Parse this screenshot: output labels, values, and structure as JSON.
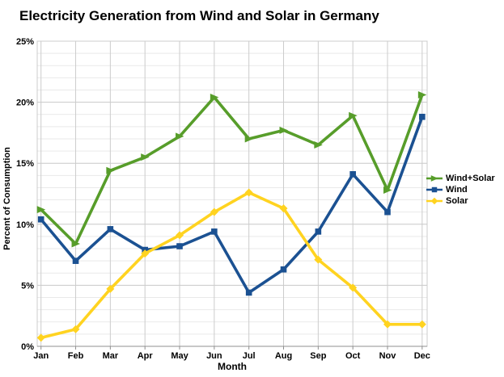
{
  "page": {
    "background": "#ffffff"
  },
  "chart_data": {
    "type": "line",
    "title": "Electricity Generation from Wind and Solar in Germany",
    "xlabel": "Month",
    "ylabel": "Percent of Consumption",
    "x_categories": [
      "Jan",
      "Feb",
      "Mar",
      "Apr",
      "May",
      "Jun",
      "Jul",
      "Aug",
      "Sep",
      "Oct",
      "Nov",
      "Dec"
    ],
    "series": [
      {
        "name": "Wind+Solar",
        "color": "#579d2a",
        "marker": "arrow",
        "values": [
          11.2,
          8.4,
          14.4,
          15.5,
          17.2,
          20.4,
          17.0,
          17.7,
          16.5,
          18.9,
          12.8,
          20.6
        ]
      },
      {
        "name": "Wind",
        "color": "#1b5192",
        "marker": "square",
        "values": [
          10.4,
          7.0,
          9.6,
          7.9,
          8.2,
          9.4,
          4.4,
          6.3,
          9.4,
          14.1,
          11.0,
          18.8
        ]
      },
      {
        "name": "Solar",
        "color": "#ffd320",
        "marker": "diamond",
        "values": [
          0.7,
          1.4,
          4.7,
          7.6,
          9.1,
          11.0,
          12.6,
          11.3,
          7.1,
          4.8,
          1.8,
          1.8
        ]
      }
    ],
    "ylim": [
      0,
      25
    ],
    "y_major_step": 5,
    "y_minor_step": 1,
    "y_tick_labels": [
      "0%",
      "5%",
      "10%",
      "15%",
      "20%",
      "25%"
    ],
    "grid": true,
    "legend_position": "right",
    "colors": {
      "grid_minor": "#e9e9e9",
      "grid_major": "#c8c8c8",
      "grid_vertical": "#cccccc",
      "frame": "#cccccc",
      "axis": "#8f8f8f",
      "text": "#000000"
    }
  }
}
